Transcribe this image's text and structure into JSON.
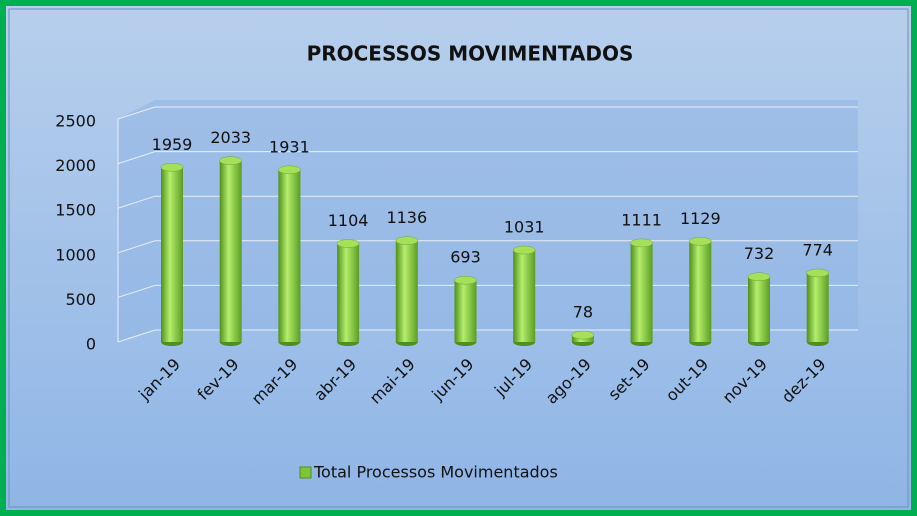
{
  "chart_data": {
    "type": "bar",
    "title": "PROCESSOS MOVIMENTADOS",
    "categories": [
      "jan-19",
      "fev-19",
      "mar-19",
      "abr-19",
      "mai-19",
      "jun-19",
      "jul-19",
      "ago-19",
      "set-19",
      "out-19",
      "nov-19",
      "dez-19"
    ],
    "series": [
      {
        "name": "Total Processos Movimentados",
        "color": "#7ec636",
        "values": [
          1959,
          2033,
          1931,
          1104,
          1136,
          693,
          1031,
          78,
          1111,
          1129,
          732,
          774
        ]
      }
    ],
    "ylim": [
      0,
      2500
    ],
    "yticks": [
      0,
      500,
      1000,
      1500,
      2000,
      2500
    ],
    "grid": true,
    "legend": "bottom"
  }
}
